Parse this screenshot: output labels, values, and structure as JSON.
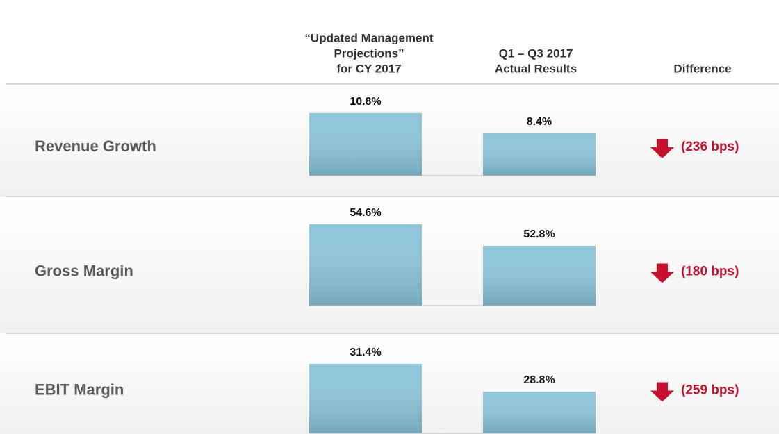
{
  "columns": [
    [
      "“Updated Management",
      "Projections”",
      "for CY 2017"
    ],
    [
      "Q1 – Q3 2017",
      "Actual Results"
    ],
    [
      "Difference"
    ]
  ],
  "chart_data": [
    {
      "type": "bar",
      "title": "Revenue Growth",
      "values": [
        10.8,
        8.4
      ],
      "value_labels": [
        "10.8%",
        "8.4%"
      ],
      "difference": "(236 bps)",
      "ylim": [
        3.35,
        14.1
      ],
      "color": "#8ec6da"
    },
    {
      "type": "bar",
      "title": "Gross Margin",
      "values": [
        54.6,
        52.8
      ],
      "value_labels": [
        "54.6%",
        "52.8%"
      ],
      "difference": "(180 bps)",
      "ylim": [
        47.8,
        55.35
      ],
      "color": "#8ec6da"
    },
    {
      "type": "bar",
      "title": "EBIT Margin",
      "values": [
        31.4,
        28.8
      ],
      "value_labels": [
        "31.4%",
        "28.8%"
      ],
      "difference": "(259 bps)",
      "ylim": [
        24.9,
        33.35
      ],
      "color": "#8ec6da"
    }
  ]
}
